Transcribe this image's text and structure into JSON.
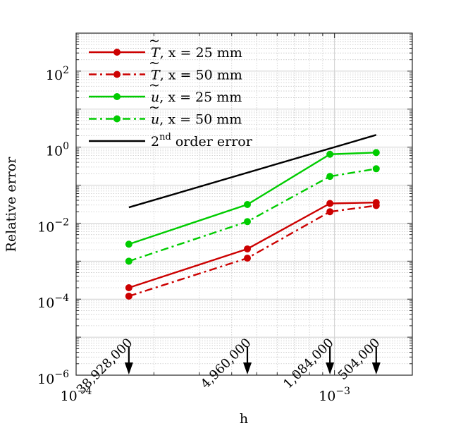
{
  "chart_data": {
    "type": "line",
    "xscale": "log",
    "yscale": "log",
    "xlabel": "h",
    "ylabel": "Relative error",
    "xlim": [
      0.0001,
      0.002
    ],
    "ylim": [
      1e-06,
      1000
    ],
    "grid": true,
    "legend_position": "top-left",
    "x_ticks": [
      {
        "value": 0.0001,
        "base": "10",
        "exp": "−4"
      },
      {
        "value": 0.001,
        "base": "10",
        "exp": "−3"
      }
    ],
    "y_ticks": [
      {
        "value": 1e-06,
        "base": "10",
        "exp": "−6"
      },
      {
        "value": 0.0001,
        "base": "10",
        "exp": "−4"
      },
      {
        "value": 0.01,
        "base": "10",
        "exp": "−2"
      },
      {
        "value": 1,
        "base": "10",
        "exp": "0"
      },
      {
        "value": 100,
        "base": "10",
        "exp": "2"
      }
    ],
    "series": [
      {
        "name": "T̃, x = 25 mm",
        "label_main": "T",
        "label_rest": ", x = 25 mm",
        "color": "#cc0000",
        "style": "solid",
        "x": [
          0.00016,
          0.00046,
          0.00096,
          0.00145
        ],
        "y": [
          0.0002,
          0.0021,
          0.033,
          0.035
        ]
      },
      {
        "name": "T̃, x = 50 mm",
        "label_main": "T",
        "label_rest": ", x = 50 mm",
        "color": "#cc0000",
        "style": "dashdot",
        "x": [
          0.00016,
          0.00046,
          0.00096,
          0.00145
        ],
        "y": [
          0.00012,
          0.0012,
          0.02,
          0.029
        ]
      },
      {
        "name": "ũ, x = 25 mm",
        "label_main": "u",
        "label_rest": ", x = 25 mm",
        "color": "#00cc00",
        "style": "solid",
        "x": [
          0.00016,
          0.00046,
          0.00096,
          0.00145
        ],
        "y": [
          0.0028,
          0.031,
          0.65,
          0.72
        ]
      },
      {
        "name": "ũ, x = 50 mm",
        "label_main": "u",
        "label_rest": ", x = 50 mm",
        "color": "#00cc00",
        "style": "dashdot",
        "x": [
          0.00016,
          0.00046,
          0.00096,
          0.00145
        ],
        "y": [
          0.001,
          0.011,
          0.17,
          0.27
        ]
      },
      {
        "name": "2nd order error",
        "label_main": "2",
        "label_sup": "nd",
        "label_rest": " order error",
        "color": "#000000",
        "style": "solid",
        "markers": false,
        "x": [
          0.00016,
          0.00145
        ],
        "y": [
          0.026,
          2.1
        ]
      }
    ],
    "annotations": [
      {
        "text": "38,928,000",
        "x": 0.00016
      },
      {
        "text": "4,960,000",
        "x": 0.00046
      },
      {
        "text": "1,084,000",
        "x": 0.00096
      },
      {
        "text": "504,000",
        "x": 0.00145
      }
    ]
  }
}
